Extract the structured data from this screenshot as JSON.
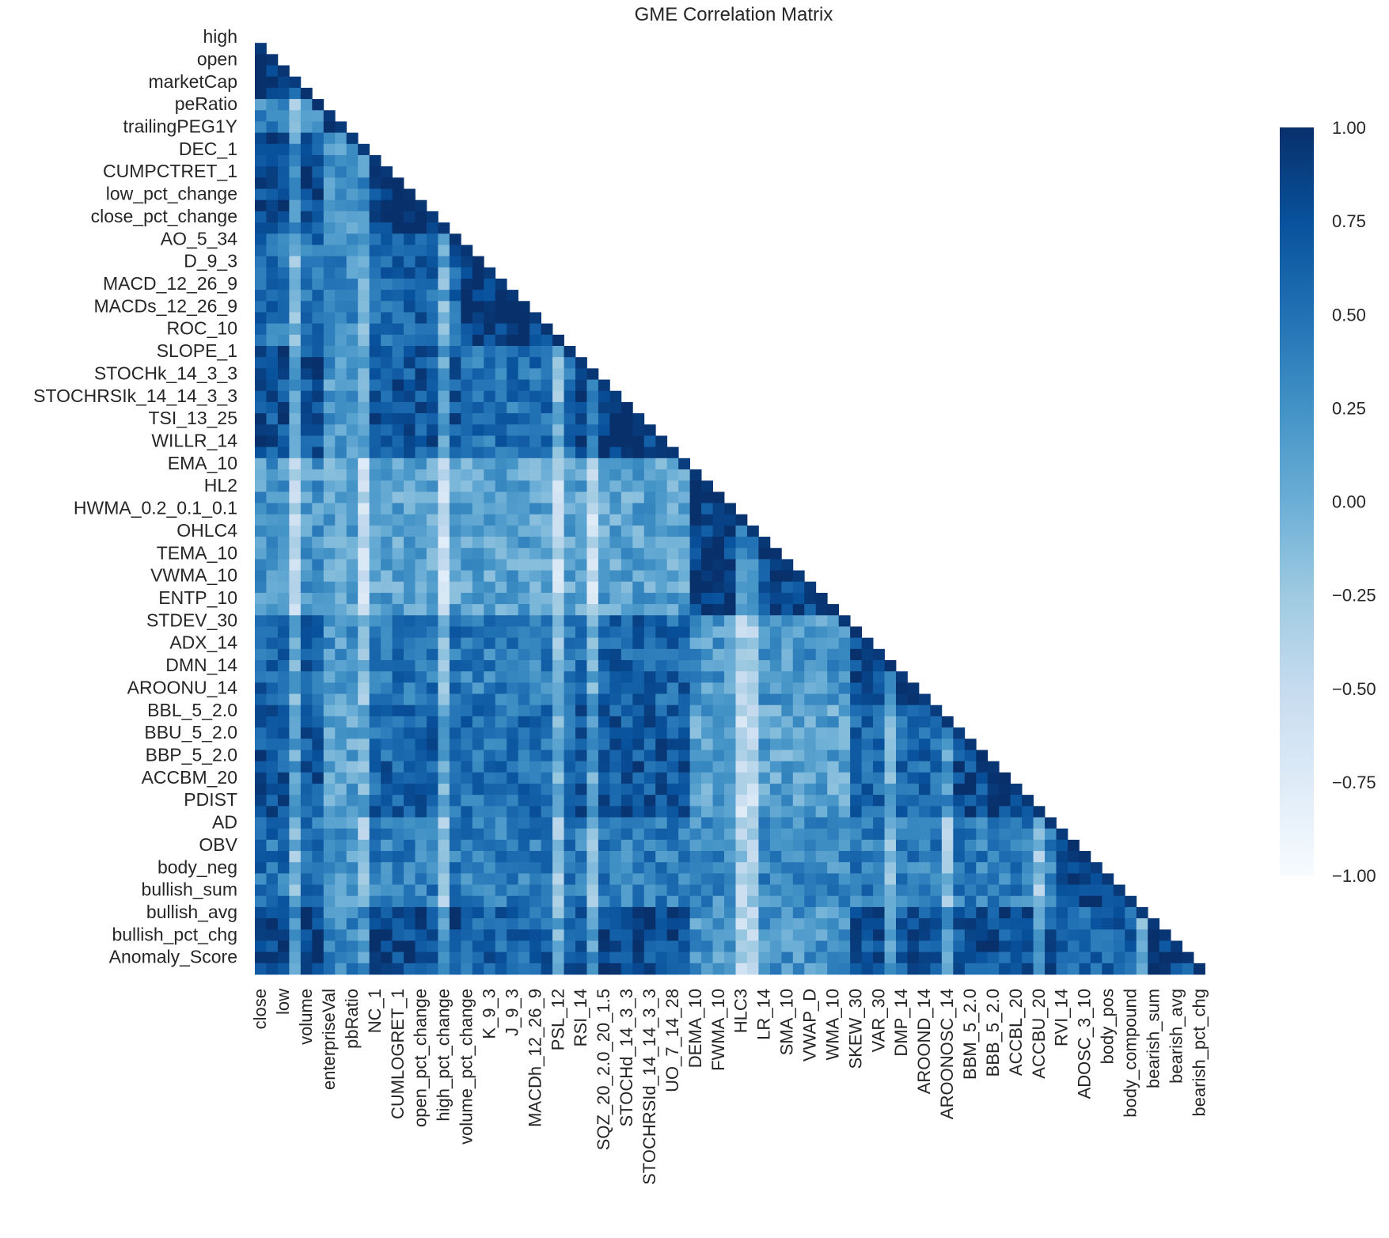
{
  "chart_data": {
    "type": "heatmap",
    "title": "GME Correlation Matrix",
    "mask": "upper-triangle",
    "colormap": "Blues",
    "colormap_colors": [
      "#f7fbff",
      "#deebf7",
      "#c6dbef",
      "#9ecae1",
      "#6baed6",
      "#4292c6",
      "#2171b5",
      "#08519c",
      "#08306b"
    ],
    "value_range": [
      -1.0,
      1.0
    ],
    "colorbar_ticks": [
      "1.00",
      "0.75",
      "0.50",
      "0.25",
      "0.00",
      "−0.25",
      "−0.50",
      "−0.75",
      "−1.00"
    ],
    "y_tick_labels": [
      "high",
      "open",
      "marketCap",
      "peRatio",
      "trailingPEG1Y",
      "DEC_1",
      "CUMPCTRET_1",
      "low_pct_change",
      "close_pct_change",
      "AO_5_34",
      "D_9_3",
      "MACD_12_26_9",
      "MACDs_12_26_9",
      "ROC_10",
      "SLOPE_1",
      "STOCHk_14_3_3",
      "STOCHRSIk_14_14_3_3",
      "TSI_13_25",
      "WILLR_14",
      "EMA_10",
      "HL2",
      "HWMA_0.2_0.1_0.1",
      "OHLC4",
      "TEMA_10",
      "VWMA_10",
      "ENTP_10",
      "STDEV_30",
      "ADX_14",
      "DMN_14",
      "AROONU_14",
      "BBL_5_2.0",
      "BBU_5_2.0",
      "BBP_5_2.0",
      "ACCBM_20",
      "PDIST",
      "AD",
      "OBV",
      "body_neg",
      "bullish_sum",
      "bullish_avg",
      "bullish_pct_chg",
      "Anomaly_Score"
    ],
    "x_tick_labels": [
      "close",
      "low",
      "volume",
      "enterpriseVal",
      "pbRatio",
      "NC_1",
      "CUMLOGRET_1",
      "open_pct_change",
      "high_pct_change",
      "volume_pct_change",
      "K_9_3",
      "J_9_3",
      "MACDh_12_26_9",
      "PSL_12",
      "RSI_14",
      "SQZ_20_2.0_20_1.5",
      "STOCHd_14_3_3",
      "STOCHRSId_14_14_3_3",
      "UO_7_14_28",
      "DEMA_10",
      "FWMA_10",
      "HLC3",
      "LR_14",
      "SMA_10",
      "VWAP_D",
      "WMA_10",
      "SKEW_30",
      "VAR_30",
      "DMP_14",
      "AROOND_14",
      "AROONOSC_14",
      "BBM_5_2.0",
      "BBB_5_2.0",
      "ACCBL_20",
      "ACCBU_20",
      "RVI_14",
      "ADOSC_3_10",
      "body_pos",
      "body_compound",
      "bearish_sum",
      "bearish_avg",
      "bearish_pct_chg"
    ]
  }
}
